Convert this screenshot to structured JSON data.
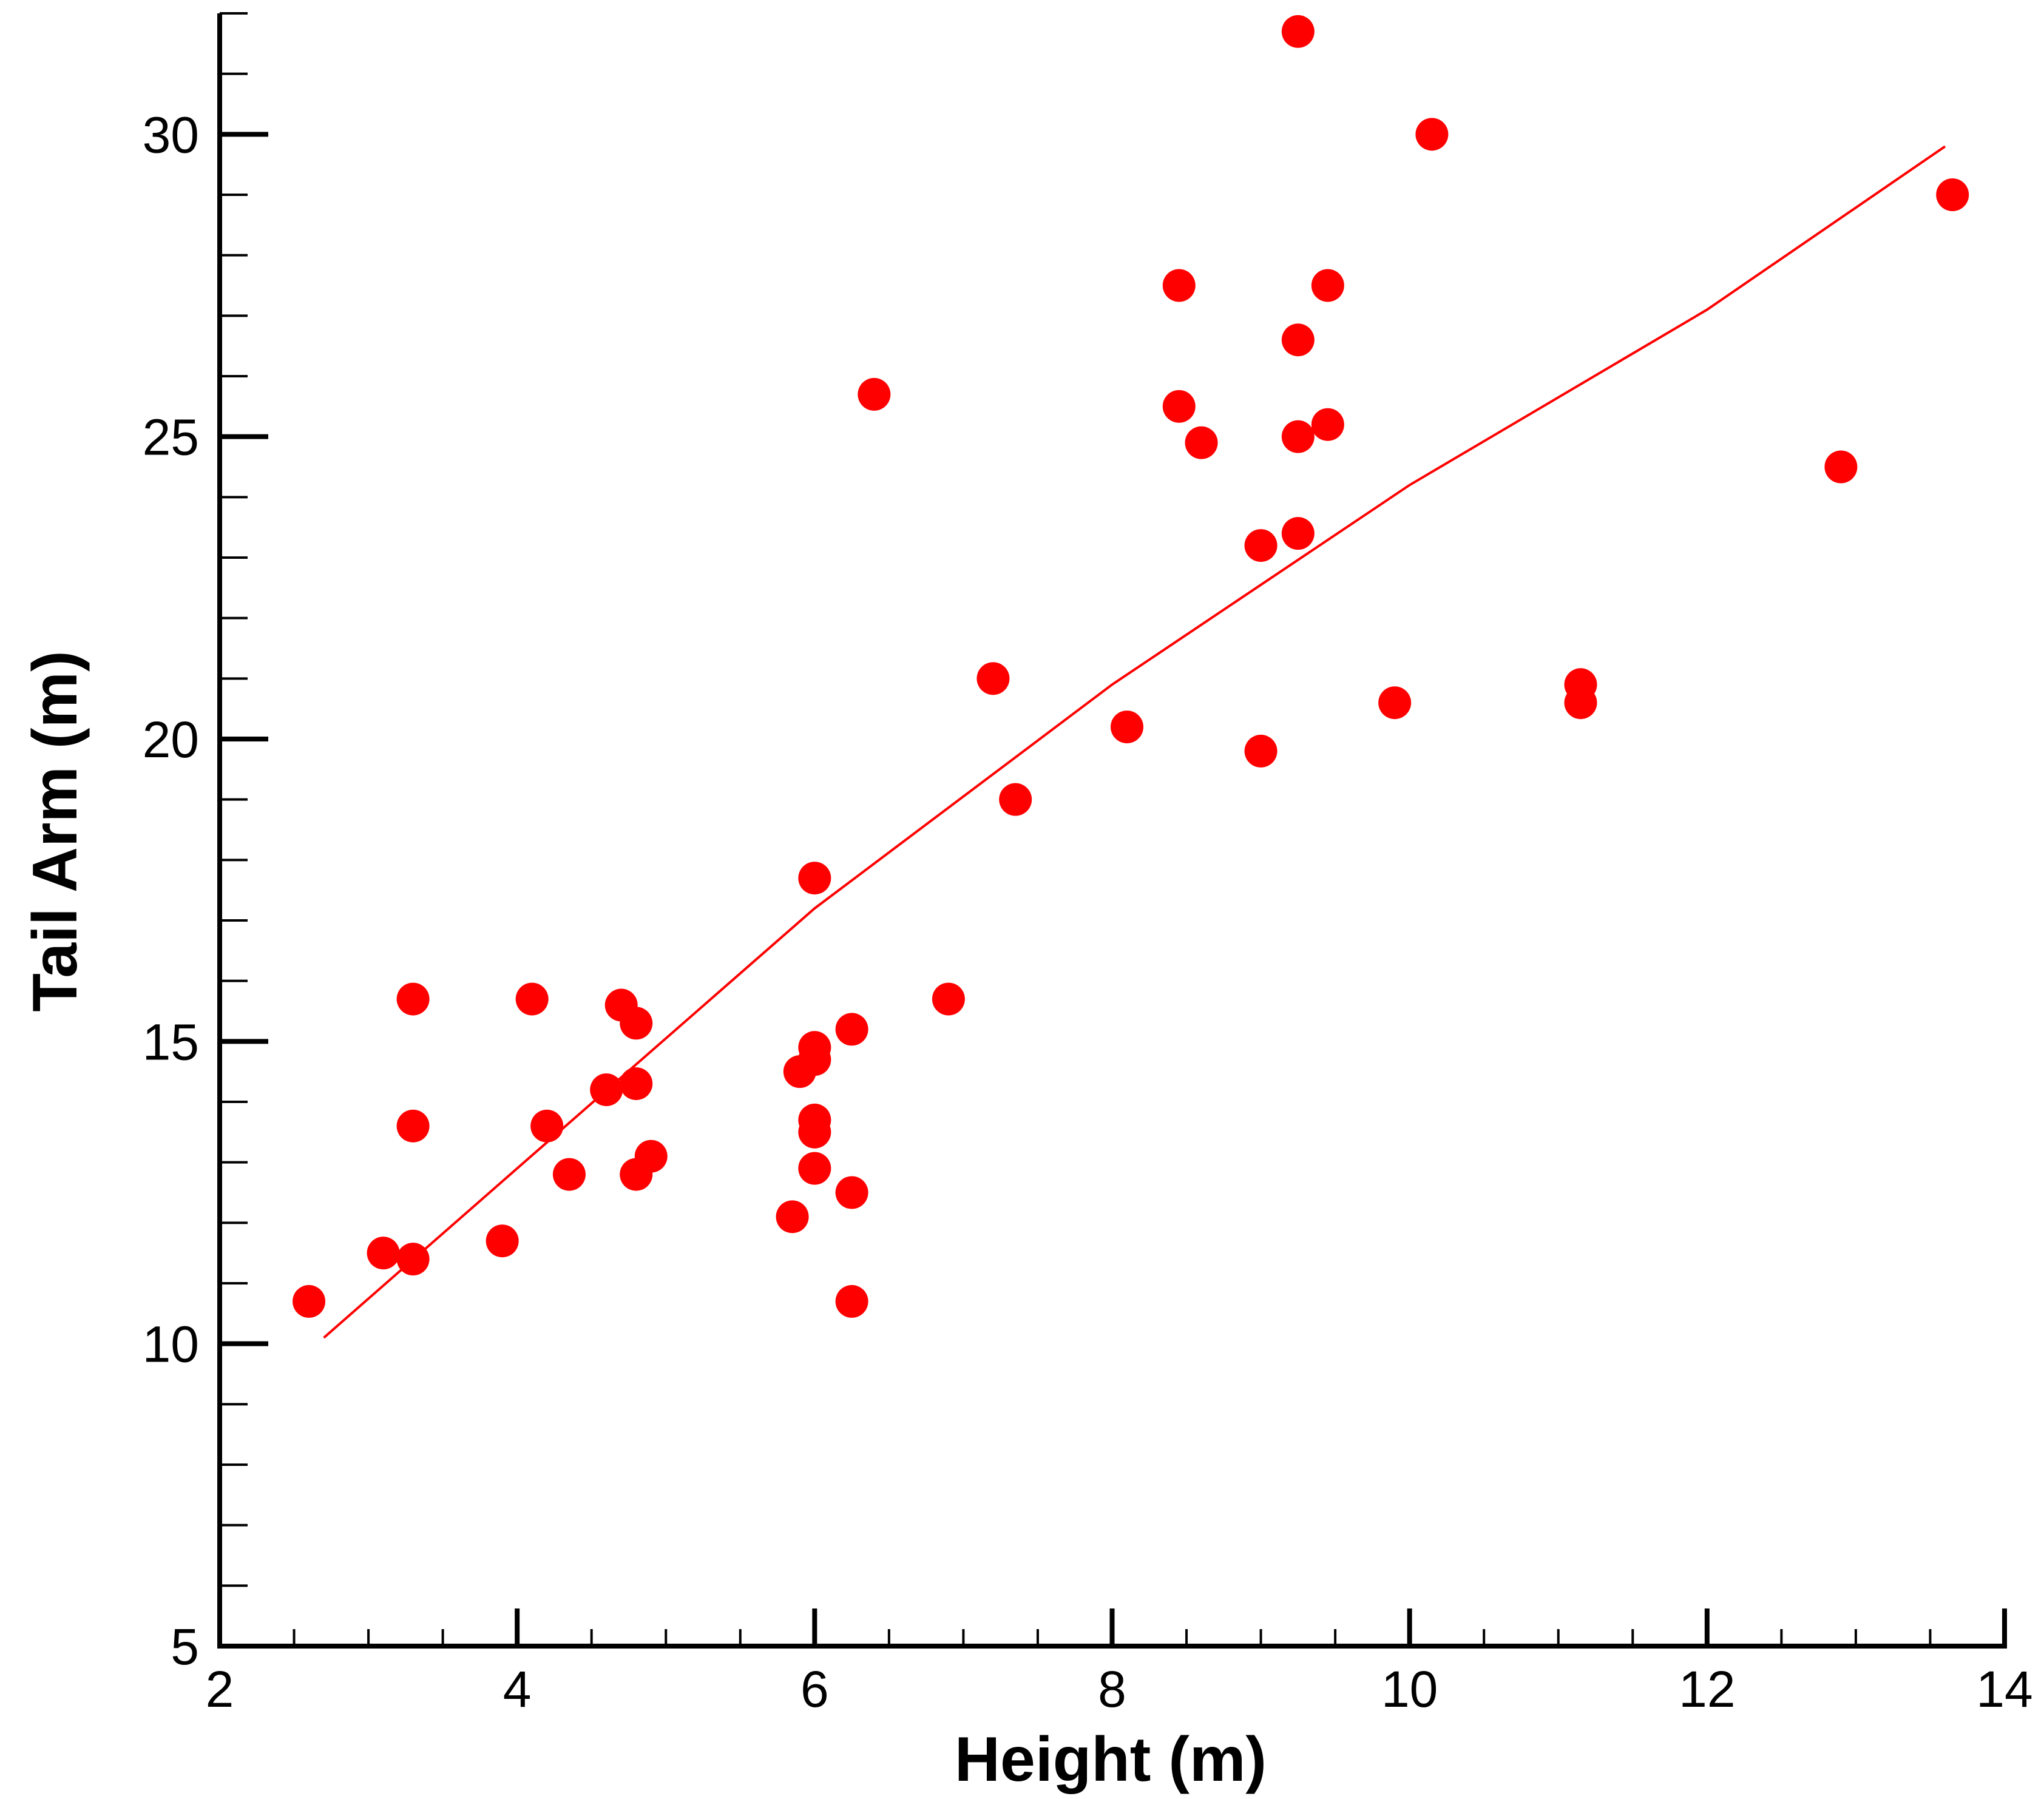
{
  "chart_data": {
    "type": "scatter",
    "title": "",
    "xlabel": "Height (m)",
    "ylabel": "Tail Arm (m)",
    "xlim": [
      2,
      14
    ],
    "ylim": [
      5,
      32
    ],
    "x_major_ticks": [
      2,
      4,
      6,
      8,
      10,
      12,
      14
    ],
    "x_minor_step": 0.5,
    "y_major_ticks": [
      5,
      10,
      15,
      20,
      25,
      30
    ],
    "y_minor_step": 1,
    "grid": false,
    "legend": "none",
    "colors": {
      "points": "#ff0000",
      "fit_line": "#ff0000",
      "axes": "#000000"
    },
    "series": [
      {
        "name": "data",
        "kind": "scatter",
        "points": [
          [
            2.6,
            10.7
          ],
          [
            3.1,
            11.5
          ],
          [
            3.3,
            11.4
          ],
          [
            3.3,
            13.6
          ],
          [
            3.3,
            15.7
          ],
          [
            3.9,
            11.7
          ],
          [
            4.1,
            15.7
          ],
          [
            4.2,
            13.6
          ],
          [
            4.35,
            12.8
          ],
          [
            4.6,
            14.2
          ],
          [
            4.7,
            15.6
          ],
          [
            4.8,
            15.3
          ],
          [
            4.8,
            14.3
          ],
          [
            4.8,
            12.8
          ],
          [
            4.9,
            13.1
          ],
          [
            5.85,
            12.1
          ],
          [
            5.9,
            14.5
          ],
          [
            6.0,
            14.9
          ],
          [
            6.0,
            14.7
          ],
          [
            6.0,
            13.7
          ],
          [
            6.0,
            13.5
          ],
          [
            6.0,
            12.9
          ],
          [
            6.0,
            17.7
          ],
          [
            6.25,
            15.2
          ],
          [
            6.25,
            12.5
          ],
          [
            6.25,
            10.7
          ],
          [
            6.4,
            25.7
          ],
          [
            6.9,
            15.7
          ],
          [
            7.2,
            21.0
          ],
          [
            7.35,
            19.0
          ],
          [
            8.1,
            20.2
          ],
          [
            8.45,
            27.5
          ],
          [
            8.45,
            25.5
          ],
          [
            8.6,
            24.9
          ],
          [
            9.0,
            23.2
          ],
          [
            9.0,
            19.8
          ],
          [
            9.25,
            31.7
          ],
          [
            9.25,
            26.6
          ],
          [
            9.25,
            25.0
          ],
          [
            9.25,
            23.4
          ],
          [
            9.45,
            27.5
          ],
          [
            9.45,
            25.2
          ],
          [
            9.9,
            20.6
          ],
          [
            10.15,
            30.0
          ],
          [
            11.15,
            20.9
          ],
          [
            11.15,
            20.6
          ],
          [
            12.9,
            24.5
          ],
          [
            13.65,
            29.0
          ]
        ]
      },
      {
        "name": "fit",
        "kind": "line",
        "points": [
          [
            2.7,
            10.1
          ],
          [
            4.0,
            12.9
          ],
          [
            6.0,
            17.2
          ],
          [
            8.0,
            20.9
          ],
          [
            10.0,
            24.2
          ],
          [
            12.0,
            27.1
          ],
          [
            13.6,
            29.8
          ]
        ]
      }
    ]
  }
}
